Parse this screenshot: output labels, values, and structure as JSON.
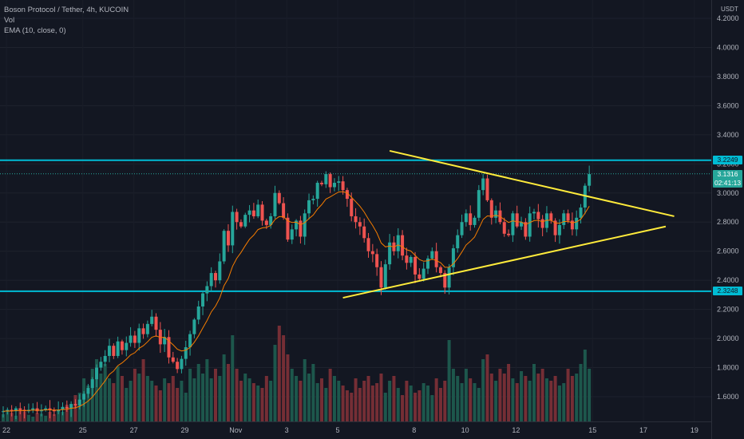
{
  "header": {
    "symbol_line": "Boson Protocol / Tether, 4h, KUCOIN",
    "vol_label": "Vol",
    "ema_label": "EMA (10, close, 0)"
  },
  "axis": {
    "unit_label": "USDT"
  },
  "price_tags": {
    "resistance_label": "3.2249",
    "support_label": "2.3248",
    "last_price_label": "3.1316",
    "countdown_label": "02:41:13"
  },
  "colors": {
    "background": "#131722",
    "up": "#26a69a",
    "down": "#ef5350",
    "ema": "#f57c00",
    "levels": "#00bcd4",
    "triangle": "#ffeb3b"
  },
  "chart_data": {
    "type": "candlestick",
    "y_tick_labels": [
      "1.6000",
      "1.8000",
      "2.0000",
      "2.2000",
      "2.4000",
      "2.6000",
      "2.8000",
      "3.0000",
      "3.2000",
      "3.4000",
      "3.6000",
      "3.8000",
      "4.0000",
      "4.2000"
    ],
    "y_tick_values": [
      1.6,
      1.8,
      2.0,
      2.2,
      2.4,
      2.6,
      2.8,
      3.0,
      3.2,
      3.4,
      3.6,
      3.8,
      4.0,
      4.2
    ],
    "x_tick_labels": [
      "22",
      "25",
      "27",
      "29",
      "Nov",
      "3",
      "5",
      "8",
      "10",
      "12",
      "15",
      "17",
      "19"
    ],
    "x_tick_positions": [
      -3,
      15,
      27,
      39,
      51,
      63,
      75,
      93,
      105,
      117,
      135,
      147,
      159
    ],
    "ylim": [
      1.43,
      4.25
    ],
    "levels": [
      3.2249,
      2.3248
    ],
    "last_price": 3.1316,
    "trendlines": [
      {
        "name": "upper",
        "from": [
          91,
          3.29
        ],
        "to": [
          158,
          2.84
        ]
      },
      {
        "name": "lower",
        "from": [
          80,
          2.28
        ],
        "to": [
          156,
          2.77
        ]
      }
    ],
    "closes": [
      1.5,
      1.51,
      1.5,
      1.52,
      1.51,
      1.5,
      1.51,
      1.52,
      1.5,
      1.51,
      1.52,
      1.51,
      1.5,
      1.51,
      1.53,
      1.52,
      1.55,
      1.54,
      1.58,
      1.62,
      1.66,
      1.72,
      1.8,
      1.84,
      1.88,
      1.95,
      1.88,
      1.98,
      1.92,
      1.97,
      2.02,
      1.97,
      2.07,
      2.03,
      2.1,
      2.15,
      2.06,
      1.96,
      2.01,
      1.87,
      1.84,
      1.79,
      1.86,
      1.94,
      2.03,
      2.13,
      2.22,
      2.31,
      2.36,
      2.45,
      2.4,
      2.53,
      2.74,
      2.64,
      2.87,
      2.8,
      2.77,
      2.85,
      2.88,
      2.84,
      2.92,
      2.81,
      2.78,
      2.84,
      3.0,
      2.93,
      2.83,
      2.68,
      2.75,
      2.81,
      2.7,
      2.86,
      2.95,
      2.96,
      3.07,
      3.06,
      3.13,
      3.04,
      3.07,
      3.08,
      3.02,
      2.96,
      2.84,
      2.8,
      2.77,
      2.69,
      2.6,
      2.58,
      2.49,
      2.35,
      2.51,
      2.66,
      2.6,
      2.71,
      2.57,
      2.52,
      2.56,
      2.44,
      2.41,
      2.48,
      2.55,
      2.6,
      2.49,
      2.45,
      2.35,
      2.49,
      2.62,
      2.71,
      2.8,
      2.86,
      2.78,
      2.83,
      3.02,
      3.1,
      2.95,
      2.83,
      2.88,
      2.8,
      2.72,
      2.71,
      2.86,
      2.77,
      2.8,
      2.7,
      2.86,
      2.87,
      2.82,
      2.76,
      2.86,
      2.81,
      2.71,
      2.78,
      2.86,
      2.81,
      2.75,
      2.83,
      2.9,
      3.05,
      3.13
    ],
    "volumes": [
      15,
      22,
      18,
      12,
      25,
      20,
      14,
      10,
      18,
      16,
      12,
      20,
      15,
      25,
      20,
      35,
      30,
      55,
      60,
      90,
      75,
      110,
      130,
      100,
      120,
      90,
      80,
      115,
      95,
      70,
      85,
      110,
      100,
      130,
      95,
      85,
      75,
      65,
      90,
      80,
      95,
      70,
      85,
      60,
      110,
      90,
      120,
      100,
      130,
      90,
      110,
      95,
      140,
      120,
      180,
      110,
      85,
      100,
      90,
      80,
      75,
      70,
      95,
      85,
      160,
      200,
      180,
      140,
      110,
      95,
      85,
      130,
      100,
      120,
      80,
      90,
      70,
      110,
      95,
      85,
      75,
      65,
      60,
      90,
      70,
      85,
      95,
      75,
      80,
      100,
      60,
      85,
      95,
      70,
      55,
      85,
      75,
      60,
      65,
      80,
      75,
      55,
      90,
      70,
      85,
      170,
      110,
      95,
      80,
      110,
      90,
      80,
      70,
      130,
      140,
      100,
      85,
      110,
      100,
      120,
      90,
      80,
      105,
      95,
      85,
      120,
      100,
      110,
      90,
      85,
      95,
      75,
      80,
      110,
      95,
      100,
      120,
      150,
      110
    ]
  }
}
